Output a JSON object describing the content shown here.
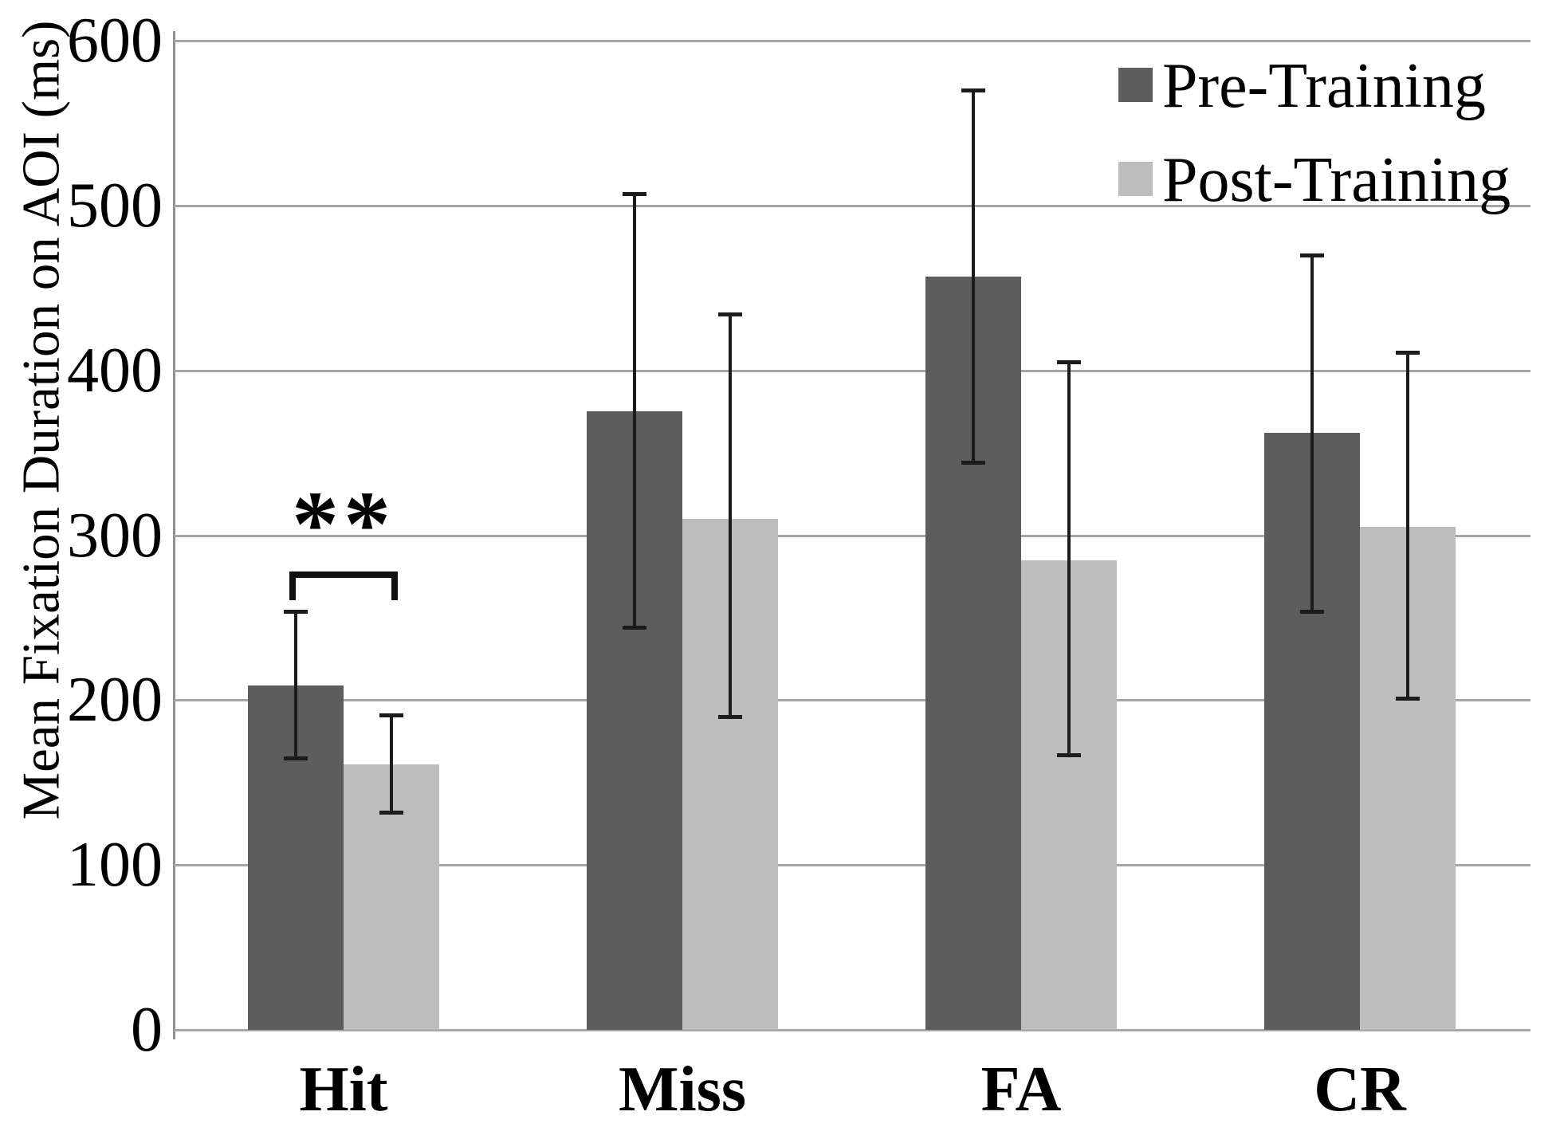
{
  "chart_data": {
    "type": "bar",
    "title": "",
    "xlabel": "",
    "ylabel": "Mean Fixation Duration on AOI (ms)",
    "ylim": [
      0,
      600
    ],
    "ytick_step": 100,
    "ytick_labels": [
      "0",
      "100",
      "200",
      "300",
      "400",
      "500",
      "600"
    ],
    "grid": "horizontal",
    "legend_position": "top-right",
    "categories": [
      "Hit",
      "Miss",
      "FA",
      "CR"
    ],
    "series": [
      {
        "name": "Pre-Training",
        "color": "#5d5d5d",
        "values": [
          209,
          375,
          457,
          362
        ],
        "error_low": [
          165,
          244,
          344,
          254
        ],
        "error_high": [
          254,
          507,
          570,
          470
        ]
      },
      {
        "name": "Post-Training",
        "color": "#bdbdbd",
        "values": [
          161,
          310,
          285,
          305
        ],
        "error_low": [
          132,
          190,
          167,
          201
        ],
        "error_high": [
          191,
          434,
          405,
          411
        ]
      }
    ],
    "annotation": {
      "text": "**",
      "category": "Hit",
      "meaning": "significant difference between Pre-Training and Post-Training Hit bars",
      "bracket_top_value": 278
    }
  },
  "colors": {
    "background": "#ffffff",
    "gridline": "#a6a6a6",
    "axis_line": "#8f8f8f",
    "error_bar": "#1c1c1c",
    "text": "#000000"
  }
}
